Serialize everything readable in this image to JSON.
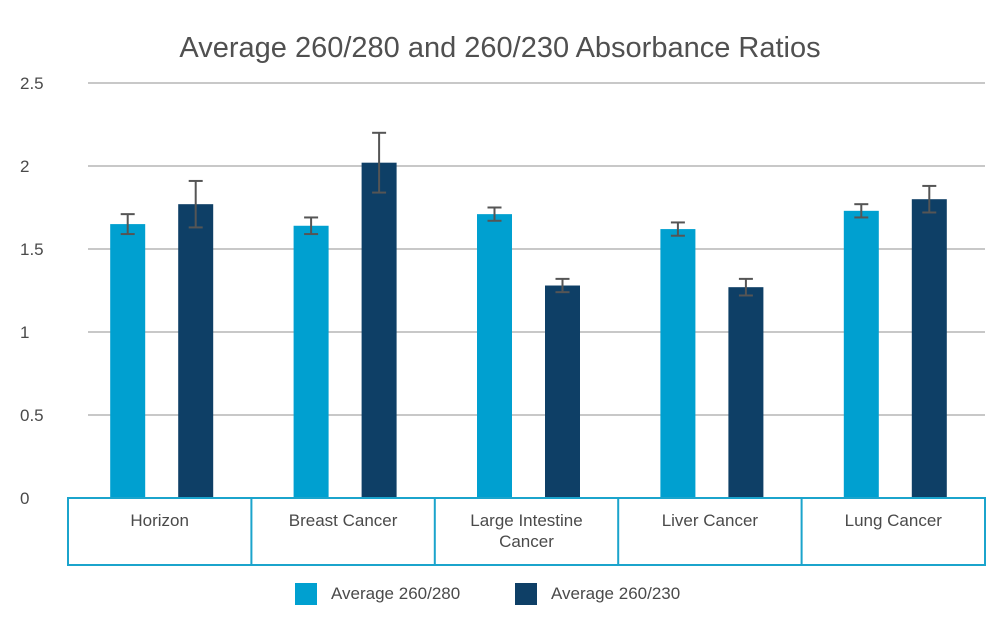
{
  "chart_data": {
    "type": "bar",
    "title": "Average 260/280 and 260/230 Absorbance Ratios",
    "categories": [
      "Horizon",
      "Breast Cancer",
      "Large Intestine Cancer",
      "Liver Cancer",
      "Lung Cancer"
    ],
    "series": [
      {
        "name": "Average 260/280",
        "color": "#00a0d0",
        "values": [
          1.65,
          1.64,
          1.71,
          1.62,
          1.73
        ],
        "error": [
          0.06,
          0.05,
          0.04,
          0.04,
          0.04
        ]
      },
      {
        "name": "Average 260/230",
        "color": "#0e3f66",
        "values": [
          1.77,
          2.02,
          1.28,
          1.27,
          1.8
        ],
        "error": [
          0.14,
          0.18,
          0.04,
          0.05,
          0.08
        ]
      }
    ],
    "ylim": [
      0,
      2.5
    ],
    "yticks": [
      "0",
      "0.5",
      "1",
      "1.5",
      "2",
      "2.5"
    ],
    "grid": true,
    "legend_position": "bottom"
  }
}
